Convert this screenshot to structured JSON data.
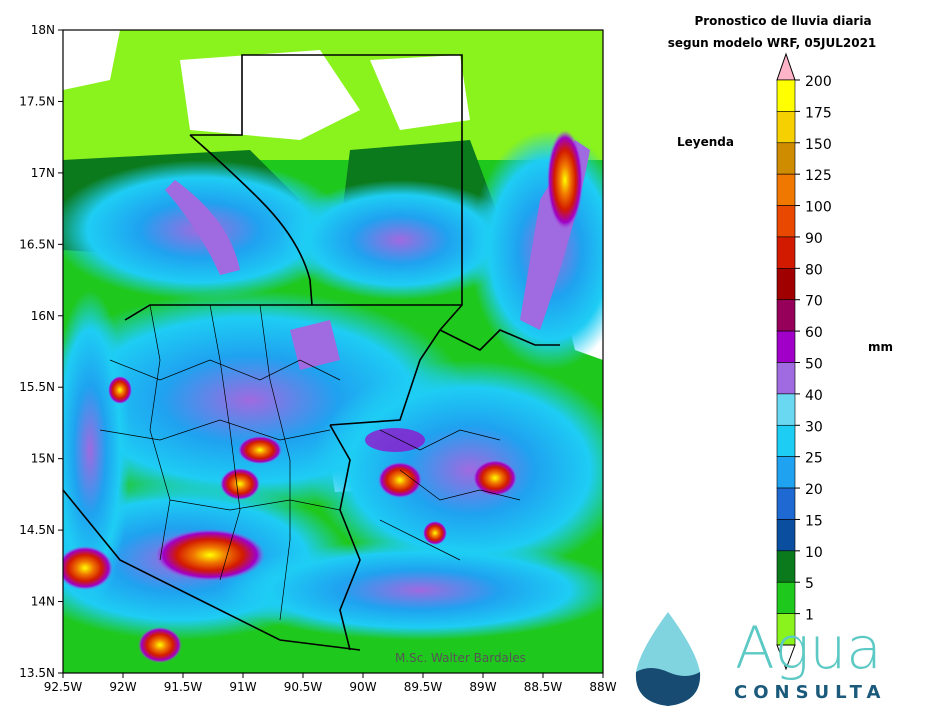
{
  "title": {
    "line1": "Pronostico de lluvia diaria",
    "line2": "segun modelo WRF,   05JUL2021"
  },
  "legend": {
    "heading": "Leyenda",
    "unit": "mm",
    "levels": [
      {
        "value": "200",
        "color": "#ffff00"
      },
      {
        "value": "175",
        "color": "#f6d000"
      },
      {
        "value": "150",
        "color": "#cf8c00"
      },
      {
        "value": "125",
        "color": "#f07800"
      },
      {
        "value": "100",
        "color": "#e84800"
      },
      {
        "value": "90",
        "color": "#d21a00"
      },
      {
        "value": "80",
        "color": "#a00000"
      },
      {
        "value": "70",
        "color": "#96005a"
      },
      {
        "value": "60",
        "color": "#a000c8"
      },
      {
        "value": "50",
        "color": "#a06ae0"
      },
      {
        "value": "40",
        "color": "#6ad8f0"
      },
      {
        "value": "30",
        "color": "#1ecdf4"
      },
      {
        "value": "25",
        "color": "#1fa2f0"
      },
      {
        "value": "20",
        "color": "#1f6ad2"
      },
      {
        "value": "15",
        "color": "#0a4ea0"
      },
      {
        "value": "10",
        "color": "#0b7a1c"
      },
      {
        "value": "5",
        "color": "#1fc81c"
      },
      {
        "value": "1",
        "color": "#8af21c"
      }
    ],
    "top_arrow_color": "#ffb4c8",
    "bottom_arrow_color": "#ffffff"
  },
  "axes": {
    "x_ticks": [
      "92.5W",
      "92W",
      "91.5W",
      "91W",
      "90.5W",
      "90W",
      "89.5W",
      "89W",
      "88.5W",
      "88W"
    ],
    "y_ticks": [
      "18N",
      "17.5N",
      "17N",
      "16.5N",
      "16N",
      "15.5N",
      "15N",
      "14.5N",
      "14N",
      "13.5N"
    ]
  },
  "credit": "M.Sc. Walter Bardales",
  "brand": {
    "name_top": "Agua",
    "name_bottom": "CONSULTA",
    "drop_color_top": "#7fd4e0",
    "drop_color_bottom": "#174b72"
  },
  "colors": {
    "map_base": "#1fc81c"
  }
}
